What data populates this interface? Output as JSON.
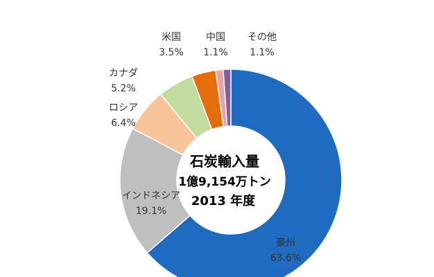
{
  "chart_data": {
    "type": "pie",
    "donut": true,
    "categories": [
      "豪州",
      "インドネシア",
      "ロシア",
      "カナダ",
      "米国",
      "中国",
      "その他"
    ],
    "values": [
      63.6,
      19.1,
      6.4,
      5.2,
      3.5,
      1.1,
      1.1
    ],
    "value_labels": [
      "63.6%",
      "19.1%",
      "6.4%",
      "5.2%",
      "3.5%",
      "1.1%",
      "1.1%"
    ],
    "colors": [
      "#1f6bc0",
      "#bfbfbf",
      "#f9c49a",
      "#c4dc9f",
      "#e46c0a",
      "#e6a3a8",
      "#7f5f9f"
    ],
    "center_text": {
      "line1": "石炭輸入量",
      "line2": "1億9,154万トン",
      "line3": "2013 年度"
    }
  }
}
